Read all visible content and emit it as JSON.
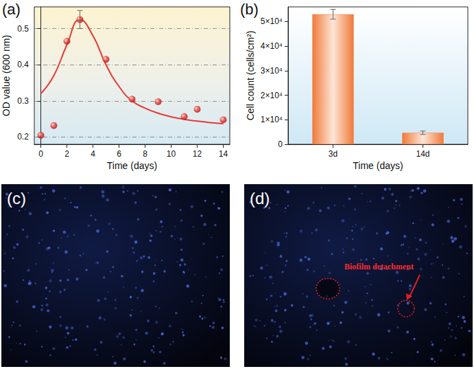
{
  "chart_data": [
    {
      "type": "scatter",
      "label": "(a)",
      "x_label": "Time (days)",
      "y_label": "OD value (600 nm)",
      "xlim": [
        -0.5,
        14.5
      ],
      "xticks": [
        0,
        2,
        4,
        6,
        8,
        10,
        12,
        14
      ],
      "ylim": [
        0.18,
        0.56
      ],
      "yticks": [
        0.2,
        0.3,
        0.4,
        0.5
      ],
      "grid": true,
      "series": [
        {
          "type": "scatter",
          "color": "#e53935",
          "marker": "circle",
          "x": [
            0,
            1,
            2,
            3,
            5,
            7,
            9,
            11,
            12,
            14
          ],
          "values": [
            0.205,
            0.232,
            0.465,
            0.525,
            0.415,
            0.305,
            0.298,
            0.257,
            0.277,
            0.248
          ],
          "errors": [
            null,
            null,
            null,
            0.025,
            null,
            null,
            null,
            null,
            null,
            null
          ]
        },
        {
          "type": "line",
          "color": "#e53935",
          "line_style": "solid",
          "x": [
            0,
            1,
            2,
            3,
            4,
            5,
            6,
            7,
            8,
            9,
            10,
            11,
            12,
            13,
            14
          ],
          "values": [
            0.32,
            0.37,
            0.455,
            0.525,
            0.48,
            0.4,
            0.34,
            0.3,
            0.28,
            0.266,
            0.256,
            0.249,
            0.244,
            0.24,
            0.237
          ]
        }
      ]
    },
    {
      "type": "bar",
      "label": "(b)",
      "x_label": "Time (days)",
      "y_label": "Cell count (cells/cm²)",
      "categories": [
        "3d",
        "14d"
      ],
      "values": [
        53000,
        4700
      ],
      "errors": [
        2000,
        700
      ],
      "color": "#f07a3a",
      "ylim": [
        0,
        56000
      ],
      "yticks": [
        0,
        {
          "value": 10000,
          "label": "1×10⁴"
        },
        {
          "value": 20000,
          "label": "2×10⁴"
        },
        {
          "value": 30000,
          "label": "3×10⁴"
        },
        {
          "value": 40000,
          "label": "4×10⁴"
        },
        {
          "value": 50000,
          "label": "5×10⁴"
        }
      ],
      "grid": false
    }
  ],
  "images": [
    {
      "label": "(c)"
    },
    {
      "label": "(d)",
      "annotation": "Biofilm detachment"
    }
  ]
}
